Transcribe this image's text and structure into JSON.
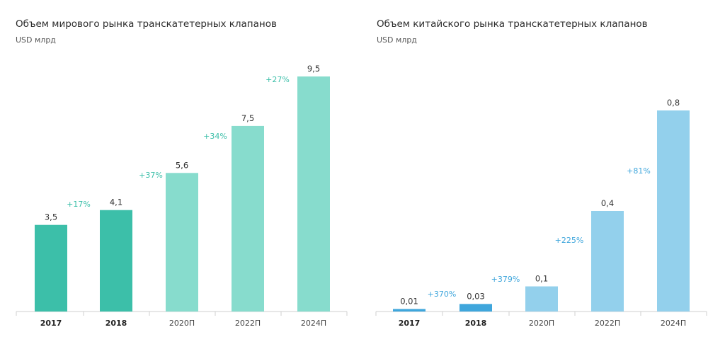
{
  "chart_data": [
    {
      "type": "bar",
      "title": "Объем мирового рынка транскатетерных клапанов",
      "unit": "USD млрд",
      "categories": [
        "2017",
        "2018",
        "2020П",
        "2022П",
        "2024П"
      ],
      "values": [
        3.5,
        4.1,
        5.6,
        7.5,
        9.5
      ],
      "value_labels": [
        "3,5",
        "4,1",
        "5,6",
        "7,5",
        "9,5"
      ],
      "growth_labels": [
        "+17%",
        "+37%",
        "+34%",
        "+27%"
      ],
      "ylim": [
        0,
        9.5
      ],
      "grid": false,
      "colors": {
        "actual": "#3cbfa9",
        "forecast": "#87dccd",
        "growth": "#3cbfa9"
      }
    },
    {
      "type": "bar",
      "title": "Объем китайского рынка транскатетерных клапанов",
      "unit": "USD млрд",
      "categories": [
        "2017",
        "2018",
        "2020П",
        "2022П",
        "2024П"
      ],
      "values": [
        0.01,
        0.03,
        0.1,
        0.4,
        0.8
      ],
      "value_labels": [
        "0,01",
        "0,03",
        "0,1",
        "0,4",
        "0,8"
      ],
      "growth_labels": [
        "+370%",
        "+379%",
        "+225%",
        "+81%"
      ],
      "ylim": [
        0,
        0.8
      ],
      "grid": false,
      "colors": {
        "actual": "#3fa6dc",
        "forecast": "#93d0ec",
        "growth": "#3fa6dc"
      }
    }
  ]
}
